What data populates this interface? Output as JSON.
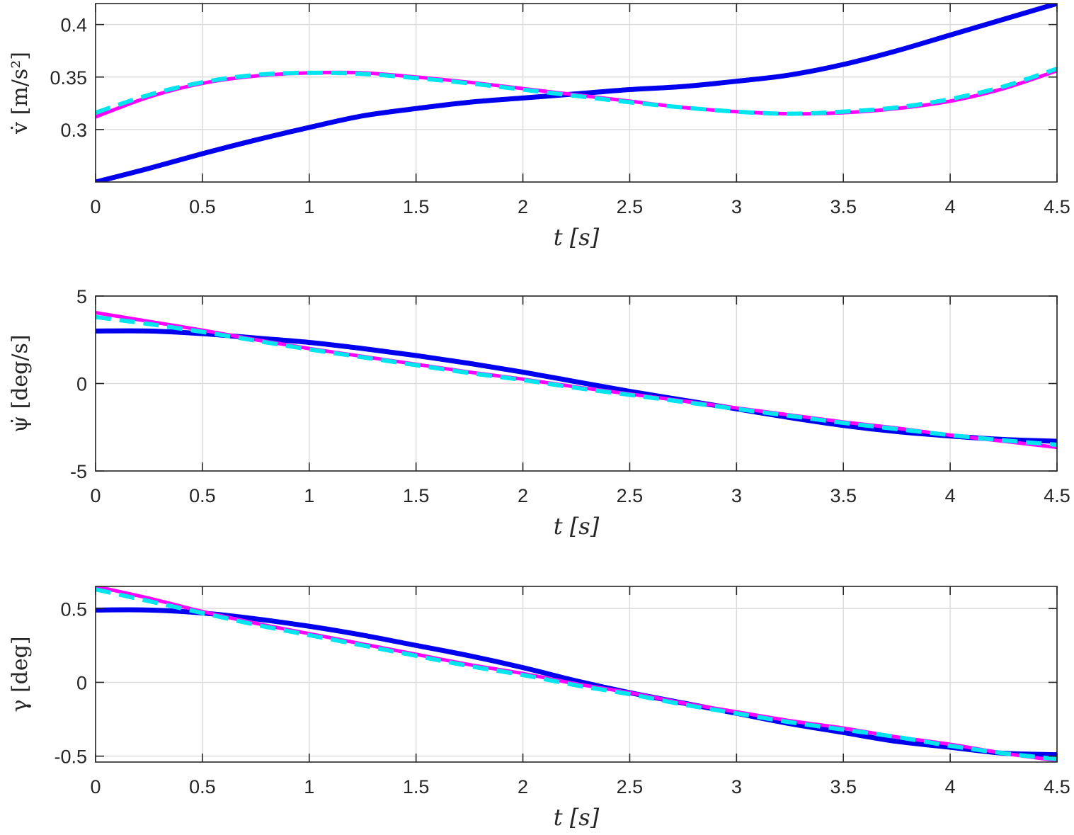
{
  "chart_data": [
    {
      "type": "line",
      "id": "vdot",
      "xlabel": "t [s]",
      "ylabel": "v̇ [m/s²]",
      "xlim": [
        0,
        4.5
      ],
      "ylim": [
        0.25,
        0.42
      ],
      "xticks": [
        0,
        0.5,
        1,
        1.5,
        2,
        2.5,
        3,
        3.5,
        4,
        4.5
      ],
      "xtick_labels": [
        "0",
        "0.5",
        "1",
        "1.5",
        "2",
        "2.5",
        "3",
        "3.5",
        "4",
        "4.5"
      ],
      "yticks": [
        0.3,
        0.35,
        0.4
      ],
      "ytick_labels": [
        "0.3",
        "0.35",
        "0.4"
      ],
      "grid": true,
      "x": [
        0,
        0.25,
        0.5,
        0.75,
        1,
        1.25,
        1.5,
        1.75,
        2,
        2.25,
        2.5,
        2.75,
        3,
        3.25,
        3.5,
        3.75,
        4,
        4.25,
        4.5
      ],
      "series": [
        {
          "color": "#0000ee",
          "style": "solid-thick",
          "values": [
            0.25,
            0.263,
            0.277,
            0.29,
            0.302,
            0.313,
            0.32,
            0.326,
            0.33,
            0.334,
            0.338,
            0.341,
            0.346,
            0.352,
            0.362,
            0.375,
            0.39,
            0.405,
            0.42
          ]
        },
        {
          "color": "#ff00ff",
          "style": "solid",
          "values": [
            0.312,
            0.331,
            0.344,
            0.351,
            0.354,
            0.354,
            0.35,
            0.345,
            0.339,
            0.333,
            0.327,
            0.321,
            0.317,
            0.315,
            0.316,
            0.32,
            0.327,
            0.339,
            0.356
          ]
        },
        {
          "color": "#00e5ee",
          "style": "dashed",
          "values": [
            0.316,
            0.333,
            0.345,
            0.352,
            0.354,
            0.353,
            0.349,
            0.344,
            0.338,
            0.332,
            0.326,
            0.321,
            0.317,
            0.315,
            0.317,
            0.321,
            0.329,
            0.341,
            0.358
          ]
        }
      ]
    },
    {
      "type": "line",
      "id": "psidot",
      "xlabel": "t [s]",
      "ylabel": "ψ̇ [deg/s]",
      "xlim": [
        0,
        4.5
      ],
      "ylim": [
        -5,
        5
      ],
      "xticks": [
        0,
        0.5,
        1,
        1.5,
        2,
        2.5,
        3,
        3.5,
        4,
        4.5
      ],
      "xtick_labels": [
        "0",
        "0.5",
        "1",
        "1.5",
        "2",
        "2.5",
        "3",
        "3.5",
        "4",
        "4.5"
      ],
      "yticks": [
        -5,
        0,
        5
      ],
      "ytick_labels": [
        "-5",
        "0",
        "5"
      ],
      "grid": true,
      "x": [
        0,
        0.25,
        0.5,
        0.75,
        1,
        1.25,
        1.5,
        1.75,
        2,
        2.25,
        2.5,
        2.75,
        3,
        3.25,
        3.5,
        3.75,
        4,
        4.25,
        4.5
      ],
      "series": [
        {
          "color": "#0000ee",
          "style": "solid-thick",
          "values": [
            3.0,
            3.0,
            2.85,
            2.6,
            2.35,
            2.0,
            1.6,
            1.15,
            0.65,
            0.1,
            -0.45,
            -0.95,
            -1.45,
            -1.95,
            -2.4,
            -2.75,
            -3.0,
            -3.2,
            -3.3
          ]
        },
        {
          "color": "#ff00ff",
          "style": "solid",
          "values": [
            4.05,
            3.55,
            3.05,
            2.5,
            2.0,
            1.55,
            1.1,
            0.65,
            0.25,
            -0.2,
            -0.6,
            -1.0,
            -1.4,
            -1.8,
            -2.2,
            -2.55,
            -2.95,
            -3.3,
            -3.65
          ]
        },
        {
          "color": "#00e5ee",
          "style": "dashed",
          "values": [
            3.8,
            3.4,
            2.95,
            2.45,
            1.95,
            1.5,
            1.05,
            0.6,
            0.2,
            -0.25,
            -0.65,
            -1.05,
            -1.45,
            -1.85,
            -2.25,
            -2.6,
            -2.95,
            -3.25,
            -3.5
          ]
        }
      ]
    },
    {
      "type": "line",
      "id": "gamma",
      "xlabel": "t [s]",
      "ylabel": "γ [deg]",
      "xlim": [
        0,
        4.5
      ],
      "ylim": [
        -0.54,
        0.65
      ],
      "xticks": [
        0,
        0.5,
        1,
        1.5,
        2,
        2.5,
        3,
        3.5,
        4,
        4.5
      ],
      "xtick_labels": [
        "0",
        "0.5",
        "1",
        "1.5",
        "2",
        "2.5",
        "3",
        "3.5",
        "4",
        "4.5"
      ],
      "yticks": [
        -0.5,
        0,
        0.5
      ],
      "ytick_labels": [
        "-0.5",
        "0",
        "0.5"
      ],
      "grid": true,
      "x": [
        0,
        0.25,
        0.5,
        0.75,
        1,
        1.25,
        1.5,
        1.75,
        2,
        2.25,
        2.5,
        2.75,
        3,
        3.25,
        3.5,
        3.75,
        4,
        4.25,
        4.5
      ],
      "series": [
        {
          "color": "#0000ee",
          "style": "solid-thick",
          "values": [
            0.49,
            0.49,
            0.47,
            0.43,
            0.38,
            0.32,
            0.25,
            0.18,
            0.1,
            0.01,
            -0.07,
            -0.14,
            -0.21,
            -0.28,
            -0.34,
            -0.4,
            -0.44,
            -0.48,
            -0.49
          ]
        },
        {
          "color": "#ff00ff",
          "style": "solid",
          "values": [
            0.65,
            0.57,
            0.48,
            0.4,
            0.33,
            0.26,
            0.19,
            0.12,
            0.06,
            -0.01,
            -0.07,
            -0.14,
            -0.2,
            -0.26,
            -0.31,
            -0.37,
            -0.42,
            -0.48,
            -0.53
          ]
        },
        {
          "color": "#00e5ee",
          "style": "dashed",
          "values": [
            0.63,
            0.55,
            0.47,
            0.39,
            0.32,
            0.25,
            0.18,
            0.11,
            0.05,
            -0.02,
            -0.08,
            -0.15,
            -0.21,
            -0.27,
            -0.32,
            -0.37,
            -0.43,
            -0.48,
            -0.52
          ]
        }
      ]
    }
  ]
}
